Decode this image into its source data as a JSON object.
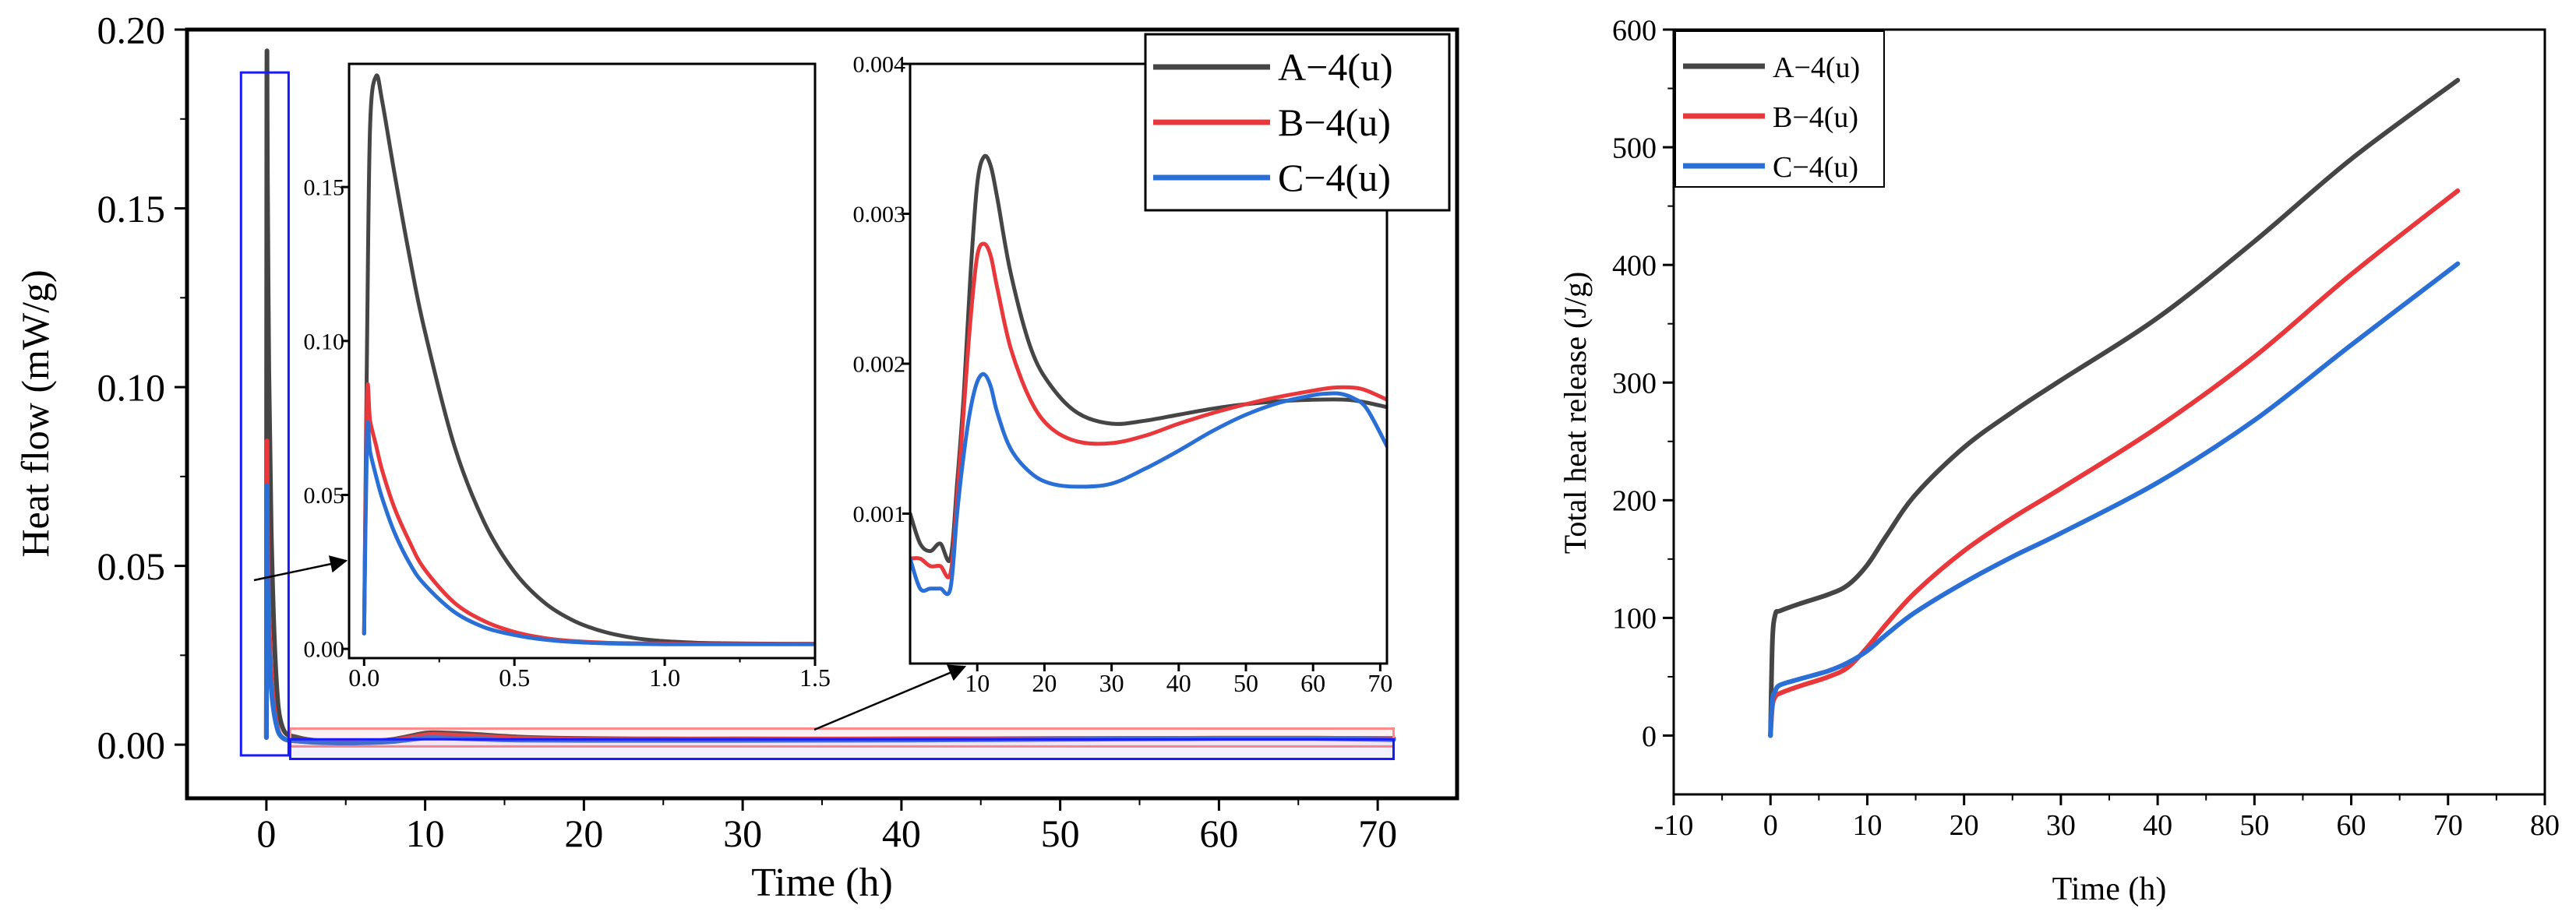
{
  "colors": {
    "A": "#454545",
    "B": "#e8383b",
    "C": "#2a6fd6",
    "zoom_box": "#1a1aff",
    "zoom_band": "#ff8a8a",
    "axis": "#000000"
  },
  "chart_data": [
    {
      "id": "main",
      "type": "line",
      "title": "",
      "xlabel": "Time (h)",
      "ylabel": "Heat flow (mW/g)",
      "xlim": [
        -5,
        75
      ],
      "ylim": [
        -0.015,
        0.2
      ],
      "xticks": [
        0,
        10,
        20,
        30,
        40,
        50,
        60,
        70
      ],
      "yticks": [
        0.0,
        0.05,
        0.1,
        0.15,
        0.2
      ],
      "ytick_labels": [
        "0.00",
        "0.05",
        "0.10",
        "0.15",
        "0.20"
      ],
      "legend": [
        "A−4(u)",
        "B−4(u)",
        "C−4(u)"
      ],
      "legend_position": "top-right",
      "series": [
        {
          "name": "A−4(u)",
          "x": [
            0,
            0.03,
            0.06,
            0.15,
            0.3,
            0.6,
            1,
            2,
            4,
            6,
            8,
            10,
            11,
            13,
            16,
            20,
            25,
            30,
            40,
            50,
            60,
            66,
            71
          ],
          "y": [
            0.002,
            0.185,
            0.16,
            0.105,
            0.06,
            0.02,
            0.005,
            0.002,
            0.0008,
            0.0008,
            0.0015,
            0.0032,
            0.0033,
            0.0029,
            0.0021,
            0.0017,
            0.0016,
            0.0016,
            0.0016,
            0.0017,
            0.0018,
            0.0018,
            0.0017
          ]
        },
        {
          "name": "B−4(u)",
          "x": [
            0,
            0.03,
            0.06,
            0.15,
            0.3,
            0.6,
            1,
            2,
            4,
            6,
            8,
            10,
            11,
            13,
            16,
            20,
            25,
            30,
            40,
            50,
            60,
            66,
            71
          ],
          "y": [
            0.002,
            0.082,
            0.065,
            0.038,
            0.02,
            0.007,
            0.002,
            0.001,
            0.0007,
            0.0007,
            0.0012,
            0.0027,
            0.0028,
            0.0024,
            0.0018,
            0.0015,
            0.0015,
            0.0015,
            0.0016,
            0.0017,
            0.0018,
            0.0018,
            0.0017
          ]
        },
        {
          "name": "C−4(u)",
          "x": [
            0,
            0.03,
            0.06,
            0.15,
            0.3,
            0.6,
            1,
            2,
            4,
            6,
            8,
            10,
            11,
            13,
            16,
            20,
            25,
            30,
            40,
            50,
            60,
            66,
            71
          ],
          "y": [
            0.002,
            0.07,
            0.055,
            0.03,
            0.016,
            0.006,
            0.002,
            0.001,
            0.0005,
            0.0005,
            0.0009,
            0.0019,
            0.0019,
            0.0016,
            0.0013,
            0.0012,
            0.0012,
            0.0012,
            0.0013,
            0.0015,
            0.0017,
            0.0017,
            0.0014
          ]
        }
      ]
    },
    {
      "id": "inset1",
      "type": "line",
      "xlim": [
        -0.05,
        1.5
      ],
      "ylim": [
        -0.003,
        0.19
      ],
      "xticks": [
        0.0,
        0.5,
        1.0,
        1.5
      ],
      "xtick_labels": [
        "0.0",
        "0.5",
        "1.0",
        "1.5"
      ],
      "yticks": [
        0.0,
        0.05,
        0.1,
        0.15
      ],
      "ytick_labels": [
        "0.00",
        "0.05",
        "0.10",
        "0.15"
      ],
      "series": [
        {
          "name": "A−4(u)",
          "x": [
            0,
            0.01,
            0.02,
            0.04,
            0.06,
            0.1,
            0.15,
            0.2,
            0.3,
            0.4,
            0.5,
            0.6,
            0.7,
            0.8,
            0.9,
            1.0,
            1.1,
            1.2,
            1.3,
            1.5
          ],
          "y": [
            0.005,
            0.1,
            0.17,
            0.186,
            0.178,
            0.155,
            0.128,
            0.104,
            0.066,
            0.041,
            0.025,
            0.015,
            0.009,
            0.0055,
            0.0035,
            0.0025,
            0.002,
            0.0018,
            0.0017,
            0.0016
          ]
        },
        {
          "name": "B−4(u)",
          "x": [
            0,
            0.01,
            0.02,
            0.04,
            0.06,
            0.1,
            0.15,
            0.2,
            0.3,
            0.4,
            0.5,
            0.6,
            0.7,
            0.8,
            0.9,
            1.0,
            1.1,
            1.2,
            1.3,
            1.5
          ],
          "y": [
            0.005,
            0.082,
            0.074,
            0.066,
            0.058,
            0.046,
            0.035,
            0.026,
            0.015,
            0.009,
            0.0055,
            0.0035,
            0.0025,
            0.002,
            0.0018,
            0.0017,
            0.0016,
            0.0016,
            0.0016,
            0.0016
          ]
        },
        {
          "name": "C−4(u)",
          "x": [
            0,
            0.01,
            0.02,
            0.04,
            0.06,
            0.1,
            0.15,
            0.2,
            0.3,
            0.4,
            0.5,
            0.6,
            0.7,
            0.8,
            0.9,
            1.0,
            1.1,
            1.2,
            1.3,
            1.5
          ],
          "y": [
            0.005,
            0.07,
            0.064,
            0.056,
            0.049,
            0.038,
            0.028,
            0.021,
            0.012,
            0.007,
            0.0045,
            0.003,
            0.0022,
            0.0018,
            0.0016,
            0.0015,
            0.0015,
            0.0015,
            0.0015,
            0.0015
          ]
        }
      ]
    },
    {
      "id": "inset2",
      "type": "line",
      "xlim": [
        0,
        71
      ],
      "ylim": [
        0.0,
        0.004
      ],
      "xticks": [
        10,
        20,
        30,
        40,
        50,
        60,
        70
      ],
      "yticks": [
        0.001,
        0.002,
        0.003,
        0.004
      ],
      "ytick_labels": [
        "0.001",
        "0.002",
        "0.003",
        "0.004"
      ],
      "series": [
        {
          "name": "A−4(u)",
          "x": [
            0,
            1.5,
            3,
            4.5,
            6,
            7,
            8,
            9,
            10,
            11,
            12,
            13,
            15,
            18,
            21,
            25,
            30,
            35,
            40,
            45,
            50,
            55,
            60,
            65,
            68,
            71
          ],
          "y": [
            0.001,
            0.0008,
            0.00075,
            0.0008,
            0.0007,
            0.0012,
            0.0018,
            0.0026,
            0.0032,
            0.00338,
            0.00332,
            0.0031,
            0.0026,
            0.0021,
            0.00185,
            0.00167,
            0.0016,
            0.00162,
            0.00166,
            0.0017,
            0.00173,
            0.00175,
            0.00176,
            0.00176,
            0.00174,
            0.00171
          ]
        },
        {
          "name": "B−4(u)",
          "x": [
            0,
            1.5,
            3,
            4.5,
            6,
            7,
            8,
            9,
            10,
            11,
            12,
            13,
            15,
            18,
            21,
            25,
            30,
            35,
            40,
            45,
            50,
            55,
            60,
            63,
            66,
            68,
            71
          ],
          "y": [
            0.0007,
            0.0007,
            0.00065,
            0.00065,
            0.0006,
            0.0011,
            0.0017,
            0.0023,
            0.00272,
            0.0028,
            0.00272,
            0.0025,
            0.0021,
            0.00175,
            0.00157,
            0.00148,
            0.00147,
            0.00152,
            0.0016,
            0.00167,
            0.00173,
            0.00178,
            0.00182,
            0.00184,
            0.00184,
            0.00182,
            0.00176
          ]
        },
        {
          "name": "C−4(u)",
          "x": [
            0,
            1.5,
            3,
            4.5,
            6,
            7,
            8,
            9,
            10,
            11,
            12,
            13,
            15,
            18,
            21,
            25,
            30,
            35,
            40,
            45,
            50,
            55,
            60,
            62,
            64,
            66,
            68,
            71
          ],
          "y": [
            0.0007,
            0.0005,
            0.0005,
            0.0005,
            0.0005,
            0.001,
            0.0014,
            0.0017,
            0.00188,
            0.00193,
            0.00185,
            0.00167,
            0.00143,
            0.00127,
            0.0012,
            0.00118,
            0.0012,
            0.0013,
            0.00142,
            0.00155,
            0.00166,
            0.00174,
            0.00179,
            0.0018,
            0.0018,
            0.00177,
            0.0017,
            0.00145
          ]
        }
      ]
    },
    {
      "id": "right",
      "type": "line",
      "title": "",
      "xlabel": "Time (h)",
      "ylabel": "Total heat release (J/g)",
      "xlim": [
        -10,
        80
      ],
      "ylim": [
        -50,
        600
      ],
      "xticks": [
        -10,
        0,
        10,
        20,
        30,
        40,
        50,
        60,
        70,
        80
      ],
      "yticks": [
        0,
        100,
        200,
        300,
        400,
        500,
        600
      ],
      "legend": [
        "A−4(u)",
        "B−4(u)",
        "C−4(u)"
      ],
      "legend_position": "top-left",
      "series": [
        {
          "name": "A−4(u)",
          "x": [
            0,
            0.2,
            0.5,
            1,
            3,
            6,
            8,
            10,
            12,
            15,
            20,
            25,
            30,
            40,
            50,
            60,
            71
          ],
          "y": [
            0,
            80,
            103,
            106,
            112,
            120,
            128,
            145,
            170,
            205,
            245,
            275,
            302,
            355,
            420,
            490,
            557
          ]
        },
        {
          "name": "B−4(u)",
          "x": [
            0,
            0.2,
            0.5,
            1,
            3,
            6,
            8,
            10,
            12,
            15,
            20,
            25,
            30,
            40,
            50,
            60,
            71
          ],
          "y": [
            0,
            25,
            33,
            36,
            42,
            50,
            58,
            75,
            95,
            122,
            157,
            185,
            210,
            262,
            322,
            392,
            463
          ]
        },
        {
          "name": "C−4(u)",
          "x": [
            0,
            0.2,
            0.5,
            1,
            3,
            6,
            8,
            10,
            12,
            15,
            20,
            25,
            30,
            40,
            50,
            60,
            71
          ],
          "y": [
            0,
            30,
            38,
            43,
            48,
            55,
            62,
            72,
            86,
            105,
            130,
            152,
            172,
            215,
            268,
            332,
            401
          ]
        }
      ]
    }
  ]
}
